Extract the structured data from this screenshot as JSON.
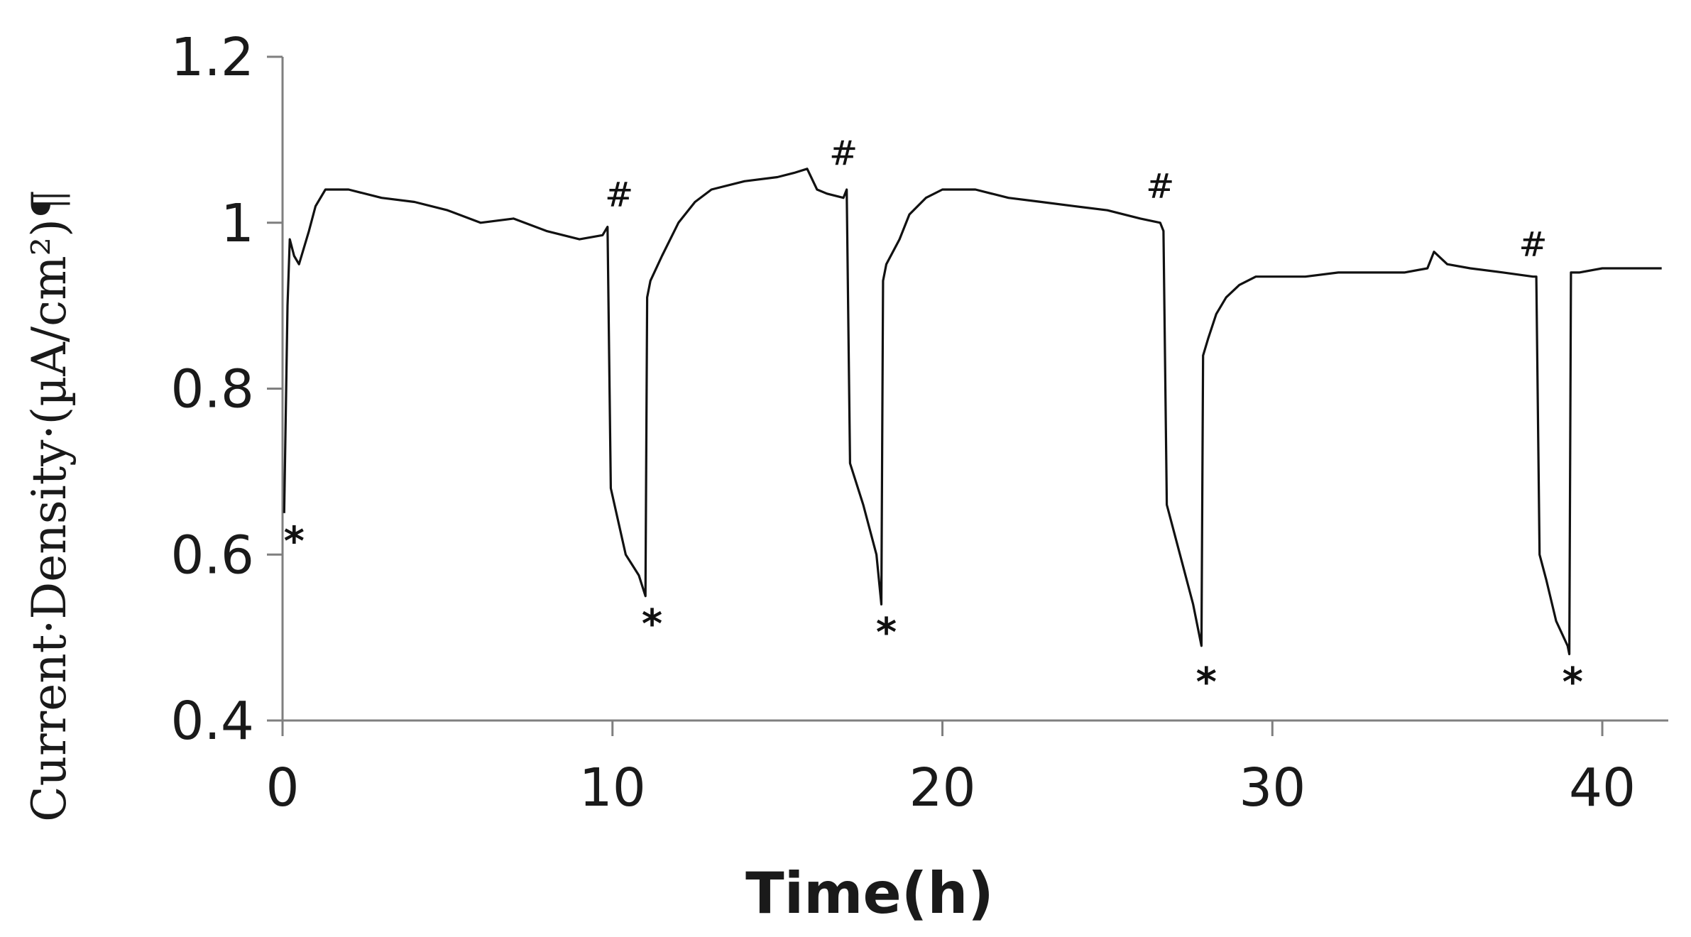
{
  "chart_data": {
    "type": "line",
    "title": "",
    "xlabel": "Time(h)",
    "ylabel": "Current·Density·(µA/cm²)¶",
    "xlim": [
      0,
      42
    ],
    "ylim": [
      0.4,
      1.2
    ],
    "xticks": [
      0,
      10,
      20,
      30,
      40
    ],
    "yticks": [
      0.4,
      0.6,
      0.8,
      1,
      1.2
    ],
    "ytick_labels": [
      "0.4",
      "0.6",
      "0.8",
      "1",
      "1.2"
    ],
    "grid": false,
    "series": [
      {
        "x": [
          0.05,
          0.15,
          0.22,
          0.35,
          0.5,
          0.8,
          1.0,
          1.3,
          2.0,
          3.0,
          4.0,
          5.0,
          6.0,
          7.0,
          8.0,
          9.0,
          9.7,
          9.85,
          9.95,
          10.4,
          10.8,
          11.0,
          11.05,
          11.15,
          11.5,
          12.0,
          12.5,
          13.0,
          14.0,
          15.0,
          15.5,
          15.9,
          16.2,
          16.5,
          17.0,
          17.1,
          17.2,
          17.6,
          18.0,
          18.15,
          18.2,
          18.3,
          18.7,
          19.0,
          19.5,
          20.0,
          21.0,
          22.0,
          23.0,
          24.0,
          25.0,
          25.5,
          26.0,
          26.6,
          26.7,
          26.8,
          27.2,
          27.6,
          27.85,
          27.9,
          28.05,
          28.3,
          28.6,
          29.0,
          29.5,
          30.0,
          31.0,
          32.0,
          33.0,
          34.0,
          34.7,
          34.9,
          35.3,
          36.0,
          37.0,
          37.9,
          38.0,
          38.1,
          38.3,
          38.6,
          38.95,
          39.0,
          39.05,
          39.3,
          40.0,
          41.0,
          41.8
        ],
        "values": [
          0.65,
          0.9,
          0.98,
          0.96,
          0.95,
          0.99,
          1.02,
          1.04,
          1.04,
          1.03,
          1.025,
          1.015,
          1.0,
          1.005,
          0.99,
          0.98,
          0.985,
          0.995,
          0.68,
          0.6,
          0.575,
          0.55,
          0.91,
          0.93,
          0.96,
          1.0,
          1.025,
          1.04,
          1.05,
          1.055,
          1.06,
          1.065,
          1.04,
          1.035,
          1.03,
          1.04,
          0.71,
          0.66,
          0.6,
          0.54,
          0.93,
          0.95,
          0.98,
          1.01,
          1.03,
          1.04,
          1.04,
          1.03,
          1.025,
          1.02,
          1.015,
          1.01,
          1.005,
          1.0,
          0.99,
          0.66,
          0.6,
          0.54,
          0.49,
          0.84,
          0.86,
          0.89,
          0.91,
          0.925,
          0.935,
          0.935,
          0.935,
          0.94,
          0.94,
          0.94,
          0.945,
          0.965,
          0.95,
          0.945,
          0.94,
          0.935,
          0.935,
          0.6,
          0.57,
          0.52,
          0.49,
          0.48,
          0.94,
          0.94,
          0.945,
          0.945,
          0.945
        ]
      }
    ],
    "annotations": [
      {
        "text": "*",
        "x": 0.35,
        "y": 0.6
      },
      {
        "text": "#",
        "x": 10.2,
        "y": 1.02
      },
      {
        "text": "*",
        "x": 11.2,
        "y": 0.5
      },
      {
        "text": "#",
        "x": 17.0,
        "y": 1.07
      },
      {
        "text": "*",
        "x": 18.3,
        "y": 0.49
      },
      {
        "text": "#",
        "x": 26.6,
        "y": 1.03
      },
      {
        "text": "*",
        "x": 28.0,
        "y": 0.43
      },
      {
        "text": "#",
        "x": 37.9,
        "y": 0.96
      },
      {
        "text": "*",
        "x": 39.1,
        "y": 0.43
      }
    ]
  }
}
